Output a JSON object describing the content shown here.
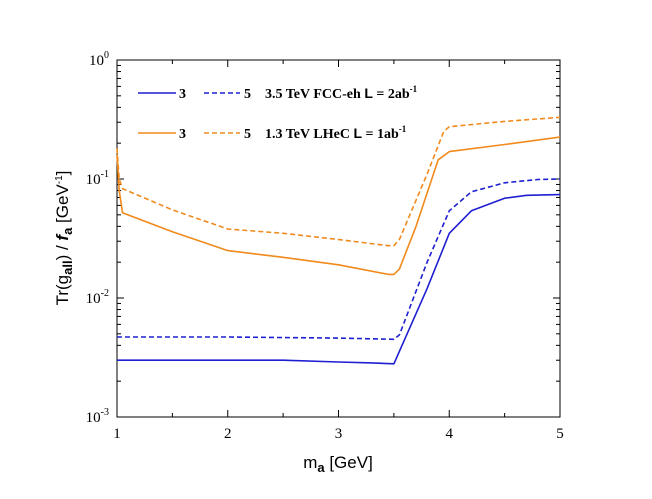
{
  "chart_data": {
    "type": "line",
    "xlabel": {
      "main": "m",
      "sub": "a",
      "unit": " [GeV]"
    },
    "ylabel": {
      "pre": "Tr(g",
      "sub": "all",
      "mid": ") / ",
      "f": "f",
      "fsub": "a",
      "unit_pre": " [GeV",
      "unit_exp": "-1",
      "unit_post": "]"
    },
    "xlim": [
      1,
      5
    ],
    "ylim": [
      0.001,
      1
    ],
    "yscale": "log",
    "grid": false,
    "x_ticks": [
      "1",
      "2",
      "3",
      "4",
      "5"
    ],
    "y_ticks": [
      {
        "value": 1,
        "base": "10",
        "exp": "0"
      },
      {
        "value": 0.1,
        "base": "10",
        "exp": "-1"
      },
      {
        "value": 0.01,
        "base": "10",
        "exp": "-2"
      },
      {
        "value": 0.001,
        "base": "10",
        "exp": "-3"
      }
    ],
    "legend": {
      "placement": "top-left",
      "rows": [
        {
          "solid_label": "3",
          "dashed_label": "5",
          "text": "3.5 TeV FCC-eh ",
          "L": "L",
          "rest": " = 2ab",
          "exp": "-1",
          "color": "#1f1fd1"
        },
        {
          "solid_label": "3",
          "dashed_label": "5",
          "text": "1.3 TeV LHeC ",
          "L": "L",
          "rest": " = 1ab",
          "exp": "-1",
          "color": "#f08a1c"
        }
      ]
    },
    "series": [
      {
        "color": "#1f1fd1",
        "dash": "solid",
        "x": [
          1.0,
          1.5,
          2.0,
          2.5,
          3.0,
          3.3,
          3.5,
          3.8,
          4.0,
          4.2,
          4.5,
          4.7,
          5.0
        ],
        "y": [
          0.003,
          0.003,
          0.003,
          0.003,
          0.0029,
          0.00285,
          0.0028,
          0.012,
          0.035,
          0.054,
          0.069,
          0.073,
          0.074
        ]
      },
      {
        "color": "#1f1fd1",
        "dash": "dashed",
        "x": [
          1.0,
          2.0,
          3.0,
          3.5,
          3.55,
          3.8,
          4.0,
          4.2,
          4.5,
          4.8,
          5.0
        ],
        "y": [
          0.0047,
          0.0047,
          0.0046,
          0.0045,
          0.0049,
          0.02,
          0.054,
          0.078,
          0.093,
          0.099,
          0.1
        ]
      },
      {
        "color": "#f08a1c",
        "dash": "solid",
        "x": [
          1.0,
          1.02,
          1.05,
          1.5,
          2.0,
          2.5,
          3.0,
          3.45,
          3.5,
          3.55,
          3.7,
          3.9,
          4.0,
          4.5,
          5.0
        ],
        "y": [
          0.16,
          0.08,
          0.052,
          0.036,
          0.025,
          0.022,
          0.019,
          0.0158,
          0.0158,
          0.0175,
          0.04,
          0.145,
          0.17,
          0.195,
          0.225
        ]
      },
      {
        "color": "#f08a1c",
        "dash": "dashed",
        "x": [
          1.0,
          1.02,
          1.05,
          1.5,
          2.0,
          2.5,
          3.0,
          3.45,
          3.5,
          3.55,
          3.8,
          3.95,
          4.0,
          4.5,
          5.0
        ],
        "y": [
          0.18,
          0.1,
          0.083,
          0.055,
          0.038,
          0.035,
          0.031,
          0.0275,
          0.0275,
          0.031,
          0.11,
          0.25,
          0.275,
          0.305,
          0.33
        ]
      }
    ]
  }
}
